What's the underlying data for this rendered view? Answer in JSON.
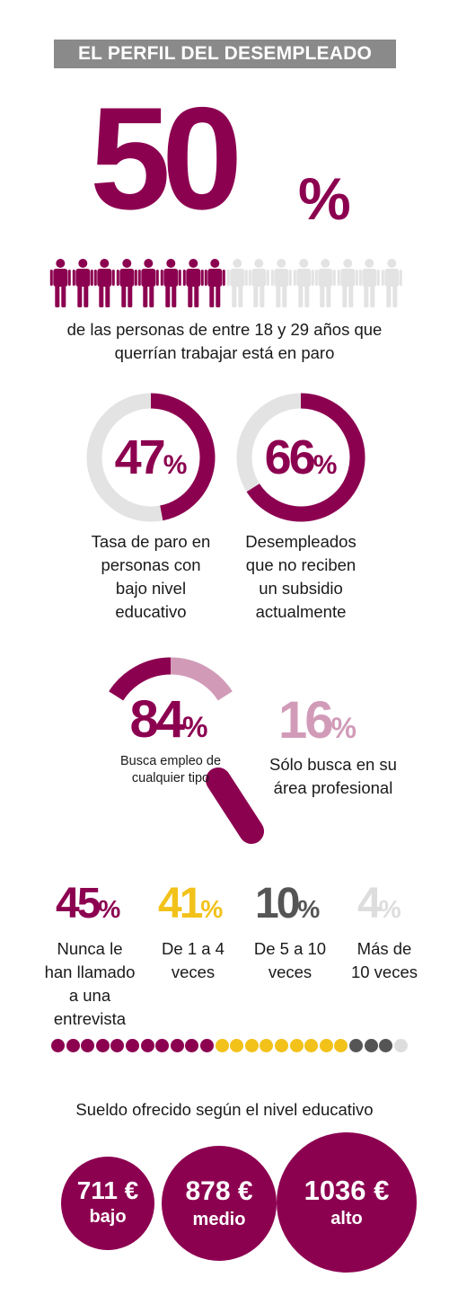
{
  "header": {
    "title": "EL PERFIL DEL DESEMPLEADO"
  },
  "hero": {
    "number": "50",
    "percent_sign": "%",
    "value_percent": 50,
    "description_line1": "de las personas de entre 18 y 29 años que",
    "description_line2": "querrían trabajar está en paro"
  },
  "colors": {
    "accent": "#8c0050",
    "light_accent": "#d19bb8",
    "grey_banner": "#8a8a8a",
    "ring_bg": "#e3e3e3",
    "yellow": "#f2c21b",
    "dark_grey": "#555555",
    "light_grey": "#dddddd"
  },
  "icons": {
    "person": "person-icon",
    "magnifier": "magnifying-glass-icon"
  },
  "rings": [
    {
      "number": "47",
      "percent_sign": "%",
      "value_percent": 47,
      "label_lines": [
        "Tasa de paro en",
        "personas con",
        "bajo nivel",
        "educativo"
      ]
    },
    {
      "number": "66",
      "percent_sign": "%",
      "value_percent": 66,
      "label_lines": [
        "Desempleados",
        "que no reciben",
        "un subsidio",
        "actualmente"
      ]
    }
  ],
  "search": {
    "main_number": "84",
    "main_percent_sign": "%",
    "main_value_percent": 84,
    "main_label_lines": [
      "Busca empleo de",
      "cualquier tipo"
    ],
    "side_number": "16",
    "side_percent_sign": "%",
    "side_value_percent": 16,
    "side_label_lines": [
      "Sólo busca en su",
      "área profesional"
    ]
  },
  "interviews": [
    {
      "number": "45",
      "percent_sign": "%",
      "value_percent": 45,
      "color": "#8c0050",
      "label_lines": [
        "Nunca le",
        "han llamado",
        "a una",
        "entrevista"
      ]
    },
    {
      "number": "41",
      "percent_sign": "%",
      "value_percent": 41,
      "color": "#f2c21b",
      "label_lines": [
        "De 1 a 4",
        "veces"
      ]
    },
    {
      "number": "10",
      "percent_sign": "%",
      "value_percent": 10,
      "color": "#555555",
      "label_lines": [
        "De 5 a 10",
        "veces"
      ]
    },
    {
      "number": "4",
      "percent_sign": "%",
      "value_percent": 4,
      "color": "#dddddd",
      "label_lines": [
        "Más de",
        "10 veces"
      ]
    }
  ],
  "dot_counts": [
    11,
    9,
    3,
    1
  ],
  "salary": {
    "title": "Sueldo ofrecido según el nivel educativo",
    "items": [
      {
        "amount": "711 €",
        "level": "bajo",
        "value": 711
      },
      {
        "amount": "878 €",
        "level": "medio",
        "value": 878
      },
      {
        "amount": "1036 €",
        "level": "alto",
        "value": 1036
      }
    ]
  }
}
